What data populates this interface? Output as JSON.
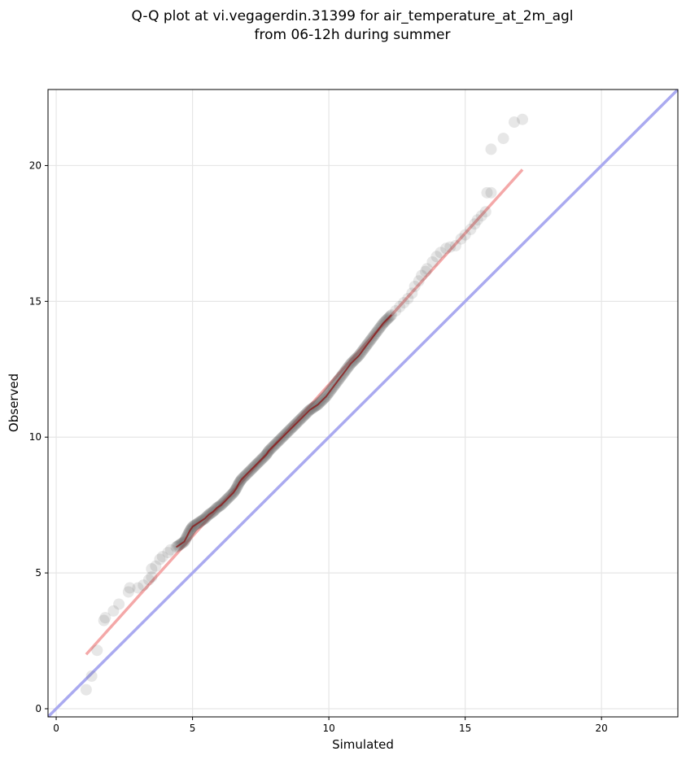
{
  "chart_data": {
    "type": "scatter",
    "title_lines": [
      "Q-Q plot at vi.vegagerdin.31399 for air_temperature_at_2m_agl",
      "from 06-12h during summer"
    ],
    "xlabel": "Simulated",
    "ylabel": "Observed",
    "xlim": [
      -0.3,
      22.8
    ],
    "ylim": [
      -0.3,
      22.8
    ],
    "xticks": [
      0,
      5,
      10,
      15,
      20
    ],
    "yticks": [
      0,
      5,
      10,
      15,
      20
    ],
    "grid": true,
    "reference_line": {
      "name": "1:1",
      "from": [
        -0.3,
        -0.3
      ],
      "to": [
        22.8,
        22.8
      ],
      "color": "#aaaaf0"
    },
    "fit_line": {
      "from": [
        1.1,
        2.0
      ],
      "to": [
        17.1,
        19.85
      ],
      "color": "#f4a8a8"
    },
    "point_color": "#555555",
    "dense_run": {
      "x_start": 4.4,
      "x_end": 12.4,
      "color": "#8b1a1a"
    },
    "points": [
      [
        1.1,
        0.7
      ],
      [
        1.3,
        1.2
      ],
      [
        1.5,
        2.15
      ],
      [
        1.75,
        3.25
      ],
      [
        1.8,
        3.35
      ],
      [
        2.1,
        3.6
      ],
      [
        2.3,
        3.85
      ],
      [
        2.65,
        4.3
      ],
      [
        2.7,
        4.45
      ],
      [
        3.0,
        4.45
      ],
      [
        3.2,
        4.55
      ],
      [
        3.4,
        4.75
      ],
      [
        3.5,
        4.85
      ],
      [
        3.5,
        5.15
      ],
      [
        3.65,
        5.25
      ],
      [
        3.8,
        5.5
      ],
      [
        3.9,
        5.6
      ],
      [
        4.1,
        5.75
      ],
      [
        4.2,
        5.85
      ],
      [
        4.4,
        5.95
      ],
      [
        4.55,
        6.05
      ],
      [
        4.7,
        6.15
      ],
      [
        4.8,
        6.35
      ],
      [
        4.9,
        6.55
      ],
      [
        5.0,
        6.7
      ],
      [
        5.15,
        6.8
      ],
      [
        5.3,
        6.9
      ],
      [
        5.45,
        7.0
      ],
      [
        5.6,
        7.15
      ],
      [
        5.75,
        7.25
      ],
      [
        5.9,
        7.4
      ],
      [
        6.05,
        7.5
      ],
      [
        6.2,
        7.65
      ],
      [
        6.35,
        7.8
      ],
      [
        6.5,
        7.95
      ],
      [
        6.6,
        8.1
      ],
      [
        6.7,
        8.3
      ],
      [
        6.8,
        8.45
      ],
      [
        6.95,
        8.6
      ],
      [
        7.1,
        8.75
      ],
      [
        7.25,
        8.9
      ],
      [
        7.4,
        9.05
      ],
      [
        7.55,
        9.2
      ],
      [
        7.7,
        9.35
      ],
      [
        7.8,
        9.5
      ],
      [
        7.95,
        9.65
      ],
      [
        8.1,
        9.8
      ],
      [
        8.25,
        9.95
      ],
      [
        8.4,
        10.1
      ],
      [
        8.55,
        10.25
      ],
      [
        8.7,
        10.4
      ],
      [
        8.85,
        10.55
      ],
      [
        9.0,
        10.7
      ],
      [
        9.15,
        10.85
      ],
      [
        9.3,
        11.0
      ],
      [
        9.45,
        11.1
      ],
      [
        9.6,
        11.2
      ],
      [
        9.75,
        11.35
      ],
      [
        9.9,
        11.5
      ],
      [
        10.05,
        11.7
      ],
      [
        10.2,
        11.9
      ],
      [
        10.35,
        12.1
      ],
      [
        10.5,
        12.3
      ],
      [
        10.65,
        12.5
      ],
      [
        10.8,
        12.7
      ],
      [
        10.95,
        12.85
      ],
      [
        11.1,
        13.0
      ],
      [
        11.25,
        13.2
      ],
      [
        11.4,
        13.4
      ],
      [
        11.55,
        13.6
      ],
      [
        11.7,
        13.8
      ],
      [
        11.85,
        14.0
      ],
      [
        12.0,
        14.2
      ],
      [
        12.15,
        14.35
      ],
      [
        12.3,
        14.5
      ],
      [
        12.45,
        14.65
      ],
      [
        12.6,
        14.8
      ],
      [
        12.75,
        14.95
      ],
      [
        12.9,
        15.1
      ],
      [
        13.05,
        15.3
      ],
      [
        13.15,
        15.55
      ],
      [
        13.3,
        15.75
      ],
      [
        13.4,
        15.95
      ],
      [
        13.55,
        16.1
      ],
      [
        13.6,
        16.2
      ],
      [
        13.8,
        16.45
      ],
      [
        13.95,
        16.65
      ],
      [
        14.1,
        16.8
      ],
      [
        14.3,
        16.95
      ],
      [
        14.45,
        17.0
      ],
      [
        14.65,
        17.05
      ],
      [
        14.85,
        17.3
      ],
      [
        15.0,
        17.45
      ],
      [
        15.2,
        17.65
      ],
      [
        15.35,
        17.85
      ],
      [
        15.45,
        18.0
      ],
      [
        15.6,
        18.15
      ],
      [
        15.75,
        18.3
      ],
      [
        15.8,
        19.0
      ],
      [
        15.95,
        19.0
      ],
      [
        15.95,
        20.6
      ],
      [
        16.4,
        21.0
      ],
      [
        16.8,
        21.6
      ],
      [
        17.1,
        21.7
      ]
    ]
  }
}
